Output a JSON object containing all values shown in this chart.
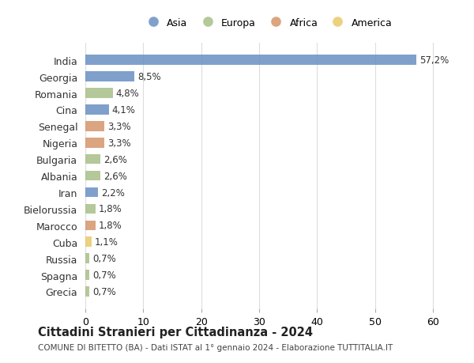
{
  "countries": [
    "India",
    "Georgia",
    "Romania",
    "Cina",
    "Senegal",
    "Nigeria",
    "Bulgaria",
    "Albania",
    "Iran",
    "Bielorussia",
    "Marocco",
    "Cuba",
    "Russia",
    "Spagna",
    "Grecia"
  ],
  "values": [
    57.2,
    8.5,
    4.8,
    4.1,
    3.3,
    3.3,
    2.6,
    2.6,
    2.2,
    1.8,
    1.8,
    1.1,
    0.7,
    0.7,
    0.7
  ],
  "labels": [
    "57,2%",
    "8,5%",
    "4,8%",
    "4,1%",
    "3,3%",
    "3,3%",
    "2,6%",
    "2,6%",
    "2,2%",
    "1,8%",
    "1,8%",
    "1,1%",
    "0,7%",
    "0,7%",
    "0,7%"
  ],
  "continents": [
    "Asia",
    "Asia",
    "Europa",
    "Asia",
    "Africa",
    "Africa",
    "Europa",
    "Europa",
    "Asia",
    "Europa",
    "Africa",
    "America",
    "Europa",
    "Europa",
    "Europa"
  ],
  "continent_colors": {
    "Asia": "#6a8fc4",
    "Europa": "#a8bf87",
    "Africa": "#d4956a",
    "America": "#e8c96a"
  },
  "legend_order": [
    "Asia",
    "Europa",
    "Africa",
    "America"
  ],
  "xlim": [
    0,
    63
  ],
  "xticks": [
    0,
    10,
    20,
    30,
    40,
    50,
    60
  ],
  "title": "Cittadini Stranieri per Cittadinanza - 2024",
  "subtitle": "COMUNE DI BITETTO (BA) - Dati ISTAT al 1° gennaio 2024 - Elaborazione TUTTITALIA.IT",
  "background_color": "#ffffff",
  "grid_color": "#dddddd",
  "bar_height": 0.6
}
